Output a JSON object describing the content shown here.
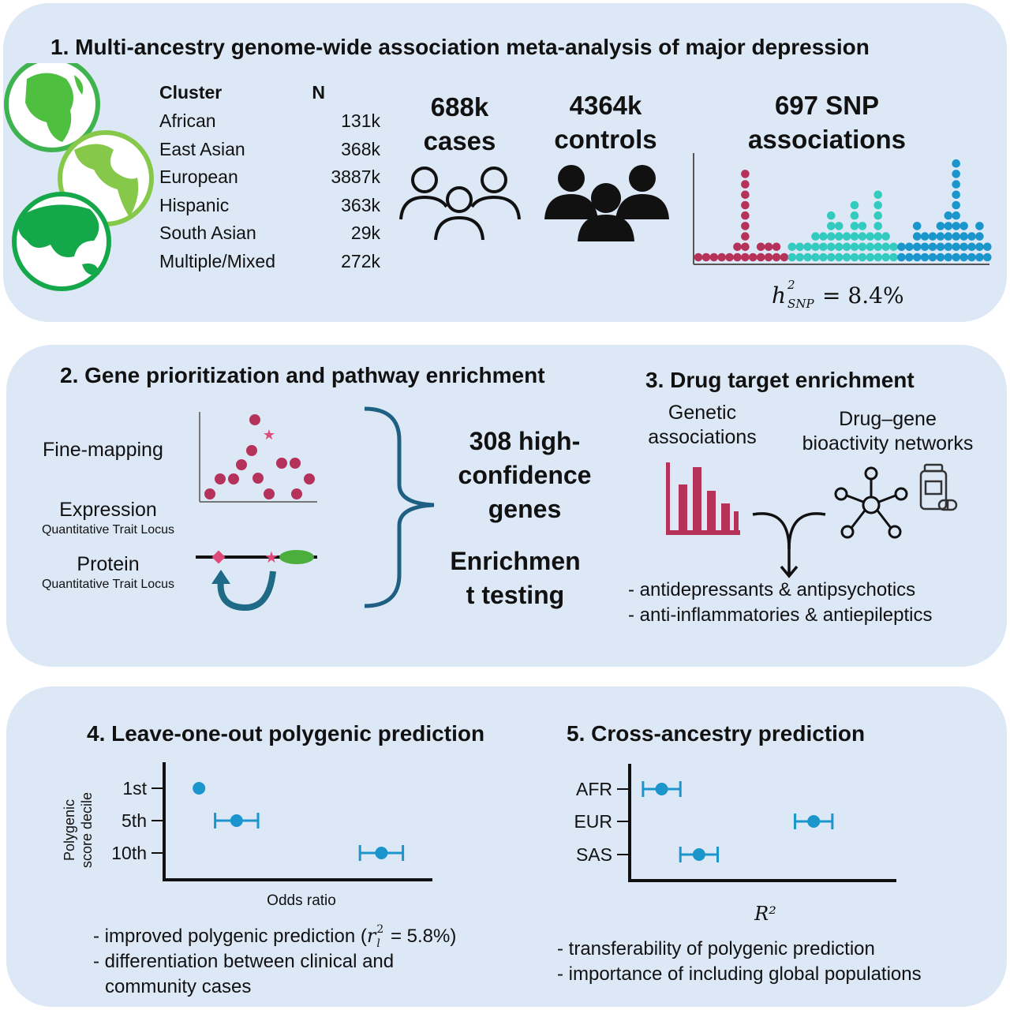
{
  "panel1": {
    "title": "1. Multi-ancestry genome-wide association meta-analysis of major depression",
    "table_header": {
      "cluster": "Cluster",
      "n": "N"
    },
    "table_rows": [
      {
        "cluster": "African",
        "n": "131k"
      },
      {
        "cluster": "East Asian",
        "n": "368k"
      },
      {
        "cluster": "European",
        "n": "3887k"
      },
      {
        "cluster": "Hispanic",
        "n": "363k"
      },
      {
        "cluster": "South Asian",
        "n": "29k"
      },
      {
        "cluster": "Multiple/Mixed",
        "n": "272k"
      }
    ],
    "cases_line1": "688k",
    "cases_line2": "cases",
    "controls_line1": "4364k",
    "controls_line2": "controls",
    "snp_line1": "697 SNP",
    "snp_line2": "associations",
    "heritability_value": "= 8.4%",
    "snp_column_heights": [
      1,
      1,
      1,
      1,
      1,
      2,
      9,
      1,
      2,
      2,
      2,
      1,
      2,
      2,
      2,
      3,
      3,
      5,
      4,
      3,
      6,
      4,
      3,
      7,
      3,
      2,
      2,
      2,
      4,
      3,
      3,
      4,
      5,
      10,
      4,
      3,
      4,
      2
    ],
    "snp_colors": {
      "red": "#b5325b",
      "teal": "#33cbbf",
      "blue": "#1a96cc"
    }
  },
  "panel2": {
    "title": "2. Gene prioritization and pathway enrichment",
    "fine_mapping": "Fine-mapping",
    "expression": "Expression",
    "expression_sub": "Quantitative Trait Locus",
    "protein": "Protein",
    "protein_sub": "Quantitative Trait Locus",
    "genes_line1": "308 high-",
    "genes_line2": "confidence",
    "genes_line3": "genes",
    "enrich_line1": "Enrichmen",
    "enrich_line2": "t testing"
  },
  "panel3": {
    "title": "3. Drug target enrichment",
    "genetic_line1": "Genetic",
    "genetic_line2": "associations",
    "network_line1": "Drug–gene",
    "network_line2": "bioactivity networks",
    "bullet1": "- antidepressants & antipsychotics",
    "bullet2": "- anti-inflammatories & antiepileptics"
  },
  "panel4": {
    "title": "4. Leave-one-out polygenic prediction",
    "ylabel_line1": "Polygenic",
    "ylabel_line2": "score decile",
    "xlabel": "Odds ratio",
    "bullet1": "- improved polygenic prediction (",
    "bullet1_end": " = 5.8%)",
    "bullet2_line1": "- differentiation between clinical and",
    "bullet2_line2": "community cases"
  },
  "panel5": {
    "title": "5. Cross-ancestry prediction",
    "bullet1": "- transferability of polygenic prediction",
    "bullet2": "- importance of including global populations"
  },
  "chart_data": [
    {
      "type": "scatter",
      "title": "4. Leave-one-out polygenic prediction",
      "xlabel": "Odds ratio",
      "ylabel": "Polygenic score decile",
      "categories": [
        "1st",
        "5th",
        "10th"
      ],
      "points": [
        {
          "category": "1st",
          "x": 0.13,
          "err": 0
        },
        {
          "category": "5th",
          "x": 0.27,
          "err": 0.08
        },
        {
          "category": "10th",
          "x": 0.81,
          "err": 0.08
        }
      ],
      "color": "#1a96cc"
    },
    {
      "type": "scatter",
      "title": "5. Cross-ancestry prediction",
      "xlabel": "R²",
      "ylabel": "",
      "categories": [
        "AFR",
        "EUR",
        "SAS"
      ],
      "points": [
        {
          "category": "AFR",
          "x": 0.12,
          "err": 0.07
        },
        {
          "category": "EUR",
          "x": 0.69,
          "err": 0.07
        },
        {
          "category": "SAS",
          "x": 0.26,
          "err": 0.07
        }
      ],
      "color": "#1a96cc"
    }
  ]
}
